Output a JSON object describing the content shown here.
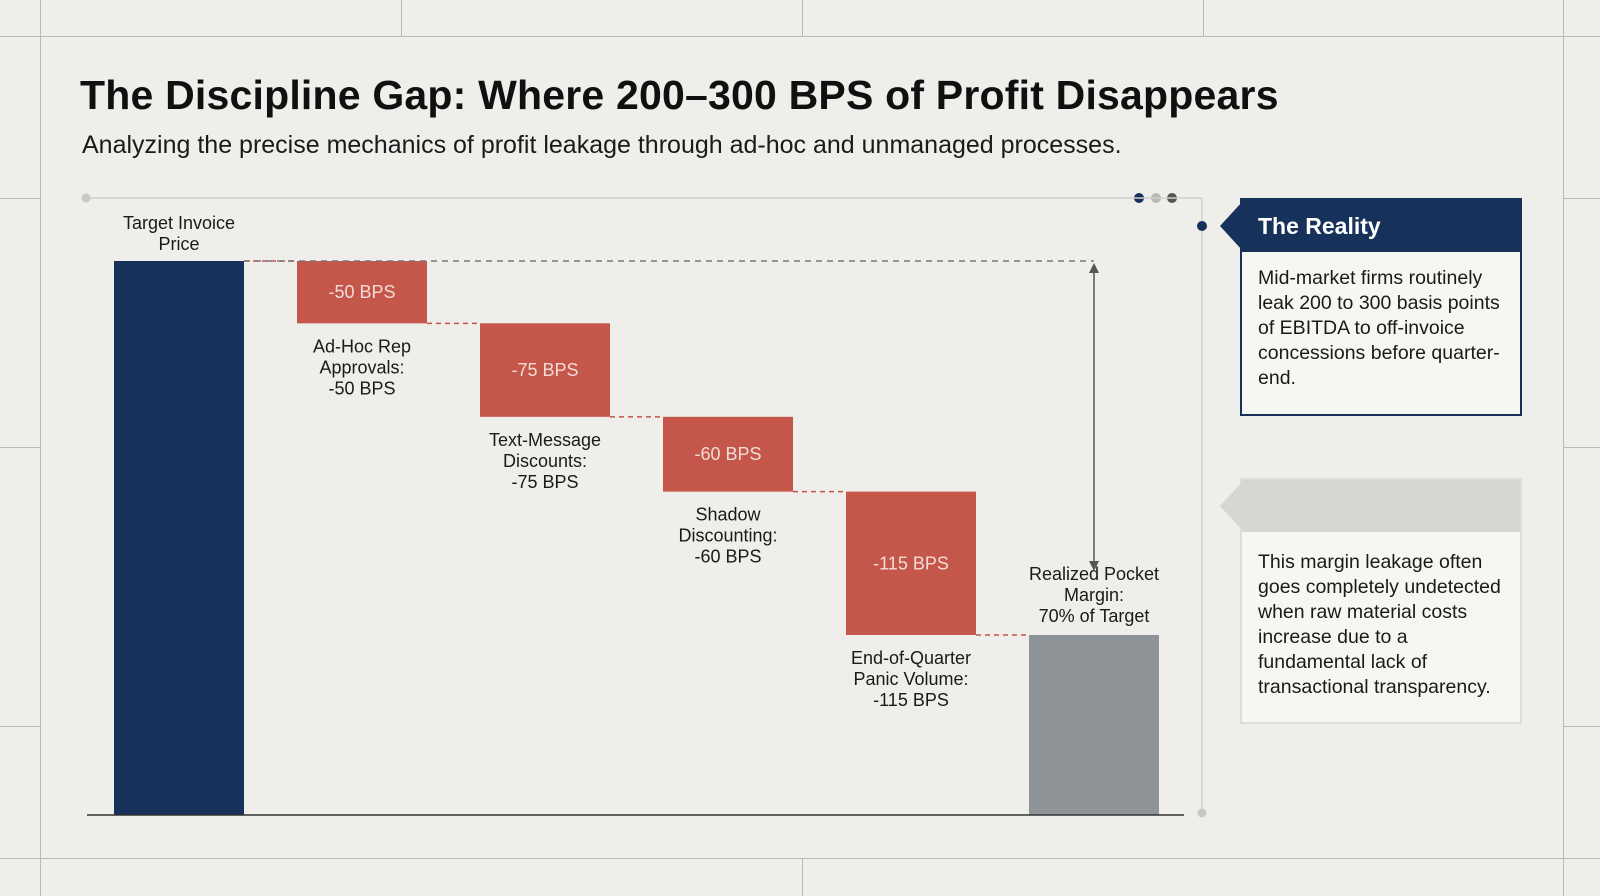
{
  "title": "The Discipline Gap: Where 200–300 BPS of Profit Disappears",
  "subtitle": "Analyzing the precise mechanics of profit leakage through ad-hoc and unmanaged processes.",
  "chart_data": {
    "type": "bar",
    "subtype": "waterfall",
    "start": {
      "label": [
        "Target Invoice",
        "Price"
      ]
    },
    "steps": [
      {
        "bar_label": "-50 BPS",
        "value": -50,
        "label": [
          "Ad-Hoc Rep",
          "Approvals:",
          "-50 BPS"
        ]
      },
      {
        "bar_label": "-75 BPS",
        "value": -75,
        "label": [
          "Text-Message",
          "Discounts:",
          "-75 BPS"
        ]
      },
      {
        "bar_label": "-60 BPS",
        "value": -60,
        "label": [
          "Shadow",
          "Discounting:",
          "-60 BPS"
        ]
      },
      {
        "bar_label": "-115 BPS",
        "value": -115,
        "label": [
          "End-of-Quarter",
          "Panic Volume:",
          "-115 BPS"
        ]
      }
    ],
    "end": {
      "label": [
        "Realized Pocket",
        "Margin:",
        "70% of Target"
      ]
    },
    "colors": {
      "start": "#17325a",
      "loss": "#c4564a",
      "end": "#8e9397",
      "loss_text": "#f3dcd8"
    }
  },
  "panels": {
    "reality": {
      "title": "The Reality",
      "body": "Mid-market firms routinely leak 200 to 300 basis points of EBITDA to off-invoice concessions before quarter-end."
    },
    "detail": {
      "body": "This margin leakage often goes completely undetected when raw material costs increase due to a fundamental lack of transactional transparency."
    }
  }
}
